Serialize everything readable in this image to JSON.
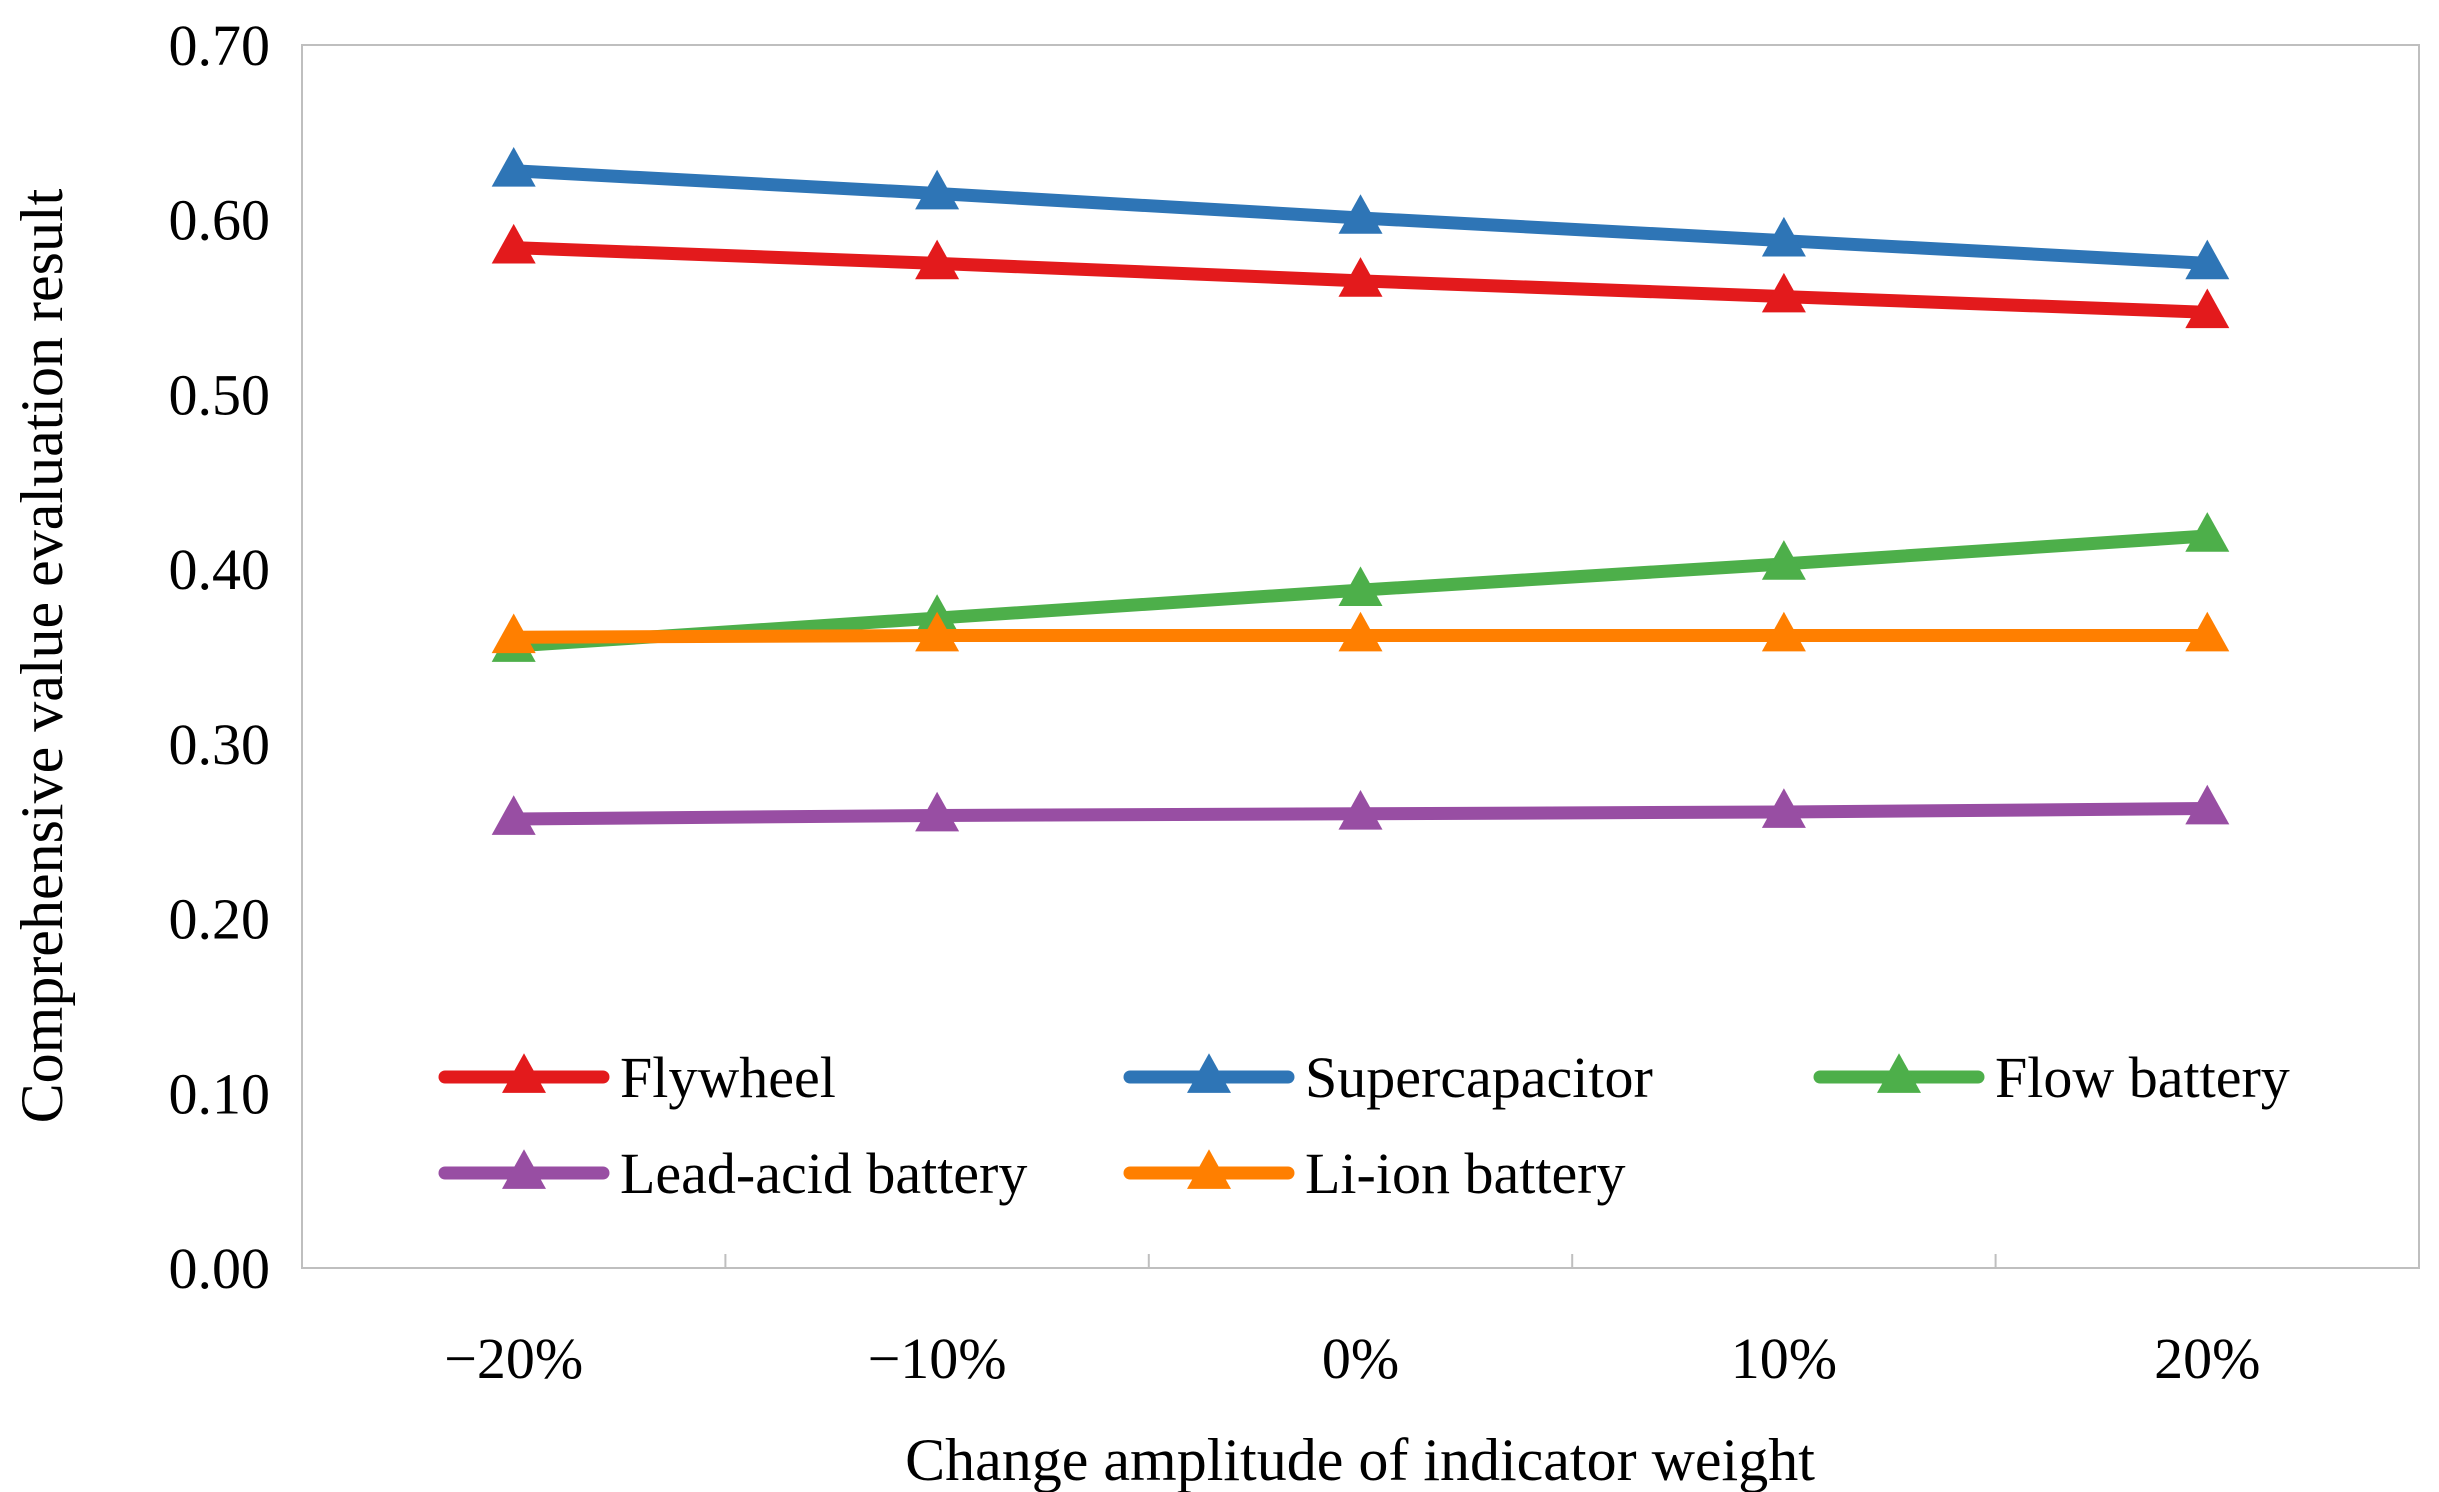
{
  "chart_data": {
    "type": "line",
    "title": "",
    "xlabel": "Change amplitude of indicator weight",
    "ylabel": "Comprehensive value evaluation result",
    "categories": [
      "−20%",
      "−10%",
      "0%",
      "10%",
      "20%"
    ],
    "ylim": [
      0,
      0.7
    ],
    "yticks": [
      "0.00",
      "0.10",
      "0.20",
      "0.30",
      "0.40",
      "0.50",
      "0.60",
      "0.70"
    ],
    "ytick_values": [
      0,
      0.1,
      0.2,
      0.3,
      0.4,
      0.5,
      0.6,
      0.7
    ],
    "grid": false,
    "legend_position": "bottom-inside",
    "marker": "triangle",
    "series": [
      {
        "name": "Flywheel",
        "color": "#e31a1c",
        "values": [
          0.584,
          0.575,
          0.565,
          0.556,
          0.547
        ]
      },
      {
        "name": "Supercapacitor",
        "color": "#2e75b6",
        "values": [
          0.628,
          0.615,
          0.601,
          0.588,
          0.575
        ]
      },
      {
        "name": "Flow battery",
        "color": "#4daf4a",
        "values": [
          0.356,
          0.372,
          0.388,
          0.403,
          0.419
        ]
      },
      {
        "name": "Lead-acid battery",
        "color": "#984ea3",
        "values": [
          0.257,
          0.259,
          0.26,
          0.261,
          0.263
        ]
      },
      {
        "name": "Li-ion battery",
        "color": "#ff7f00",
        "values": [
          0.361,
          0.362,
          0.362,
          0.362,
          0.362
        ]
      }
    ]
  }
}
